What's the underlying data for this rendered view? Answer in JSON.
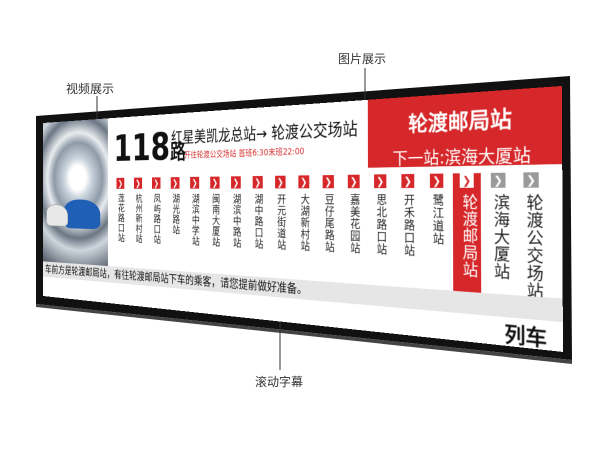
{
  "annotations": {
    "video": "视频展示",
    "image": "图片展示",
    "ticker": "滚动字幕"
  },
  "screen": {
    "route_number": "118",
    "route_suffix": "路",
    "route_title": "红星美凯龙总站→ 轮渡公交场站",
    "route_info": "开往轮渡公交场站  首班6:30末班22:00",
    "current_stop": "轮渡邮局站",
    "next_stop": "下一站:滨海大厦站",
    "stops": [
      "莲花路口站",
      "杭州新村站",
      "凤屿路口站",
      "湖光路站",
      "湖滨中学站",
      "闽南大厦站",
      "湖滨中路站",
      "湖中路口站",
      "开元街道站",
      "大湖新村站",
      "豆仔尾路站",
      "嘉美花园站",
      "思北路口站",
      "开禾路口站",
      "鹭江道站",
      "轮渡邮局站",
      "滨海大厦站",
      "轮渡公交场站"
    ],
    "ticker": "车前方是轮渡邮局站，有往轮渡邮局站下车的乘客，请您提前做好准备。",
    "corner_label": "列车"
  }
}
